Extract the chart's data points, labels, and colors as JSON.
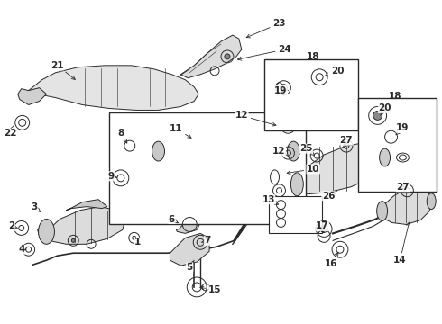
{
  "bg_color": "#ffffff",
  "fig_width": 4.9,
  "fig_height": 3.6,
  "dpi": 100,
  "gray": "#2a2a2a",
  "light_gray": "#cccccc",
  "mid_gray": "#888888",
  "annotation_fs": 7.5,
  "arrow_labels": [
    [
      "21",
      55,
      68,
      85,
      84
    ],
    [
      "22",
      12,
      148,
      23,
      138
    ],
    [
      "23",
      310,
      27,
      270,
      40
    ],
    [
      "24",
      316,
      55,
      268,
      68
    ],
    [
      "8",
      142,
      155,
      155,
      162
    ],
    [
      "9",
      130,
      195,
      138,
      202
    ],
    [
      "10",
      345,
      188,
      318,
      185
    ],
    [
      "11",
      198,
      143,
      220,
      150
    ],
    [
      "12",
      267,
      127,
      295,
      138
    ],
    [
      "12",
      310,
      165,
      302,
      170
    ],
    [
      "13",
      315,
      228,
      330,
      228
    ],
    [
      "14",
      422,
      285,
      430,
      270
    ],
    [
      "15",
      240,
      320,
      260,
      314
    ],
    [
      "16",
      367,
      285,
      378,
      275
    ],
    [
      "17",
      360,
      248,
      358,
      255
    ],
    [
      "18",
      355,
      65,
      355,
      75
    ],
    [
      "18",
      434,
      108,
      434,
      120
    ],
    [
      "19",
      323,
      97,
      336,
      100
    ],
    [
      "20",
      380,
      80,
      367,
      90
    ],
    [
      "19",
      444,
      138,
      452,
      130
    ],
    [
      "20",
      440,
      118,
      445,
      122
    ],
    [
      "25",
      340,
      168,
      352,
      175
    ],
    [
      "26",
      368,
      215,
      380,
      210
    ],
    [
      "27",
      380,
      160,
      388,
      170
    ],
    [
      "27",
      440,
      210,
      452,
      215
    ],
    [
      "1",
      155,
      270,
      155,
      265
    ],
    [
      "2",
      18,
      255,
      22,
      252
    ],
    [
      "3",
      40,
      232,
      42,
      238
    ],
    [
      "4",
      28,
      278,
      32,
      272
    ],
    [
      "5",
      215,
      285,
      218,
      278
    ],
    [
      "6",
      195,
      240,
      200,
      248
    ],
    [
      "7",
      228,
      262,
      225,
      270
    ]
  ]
}
